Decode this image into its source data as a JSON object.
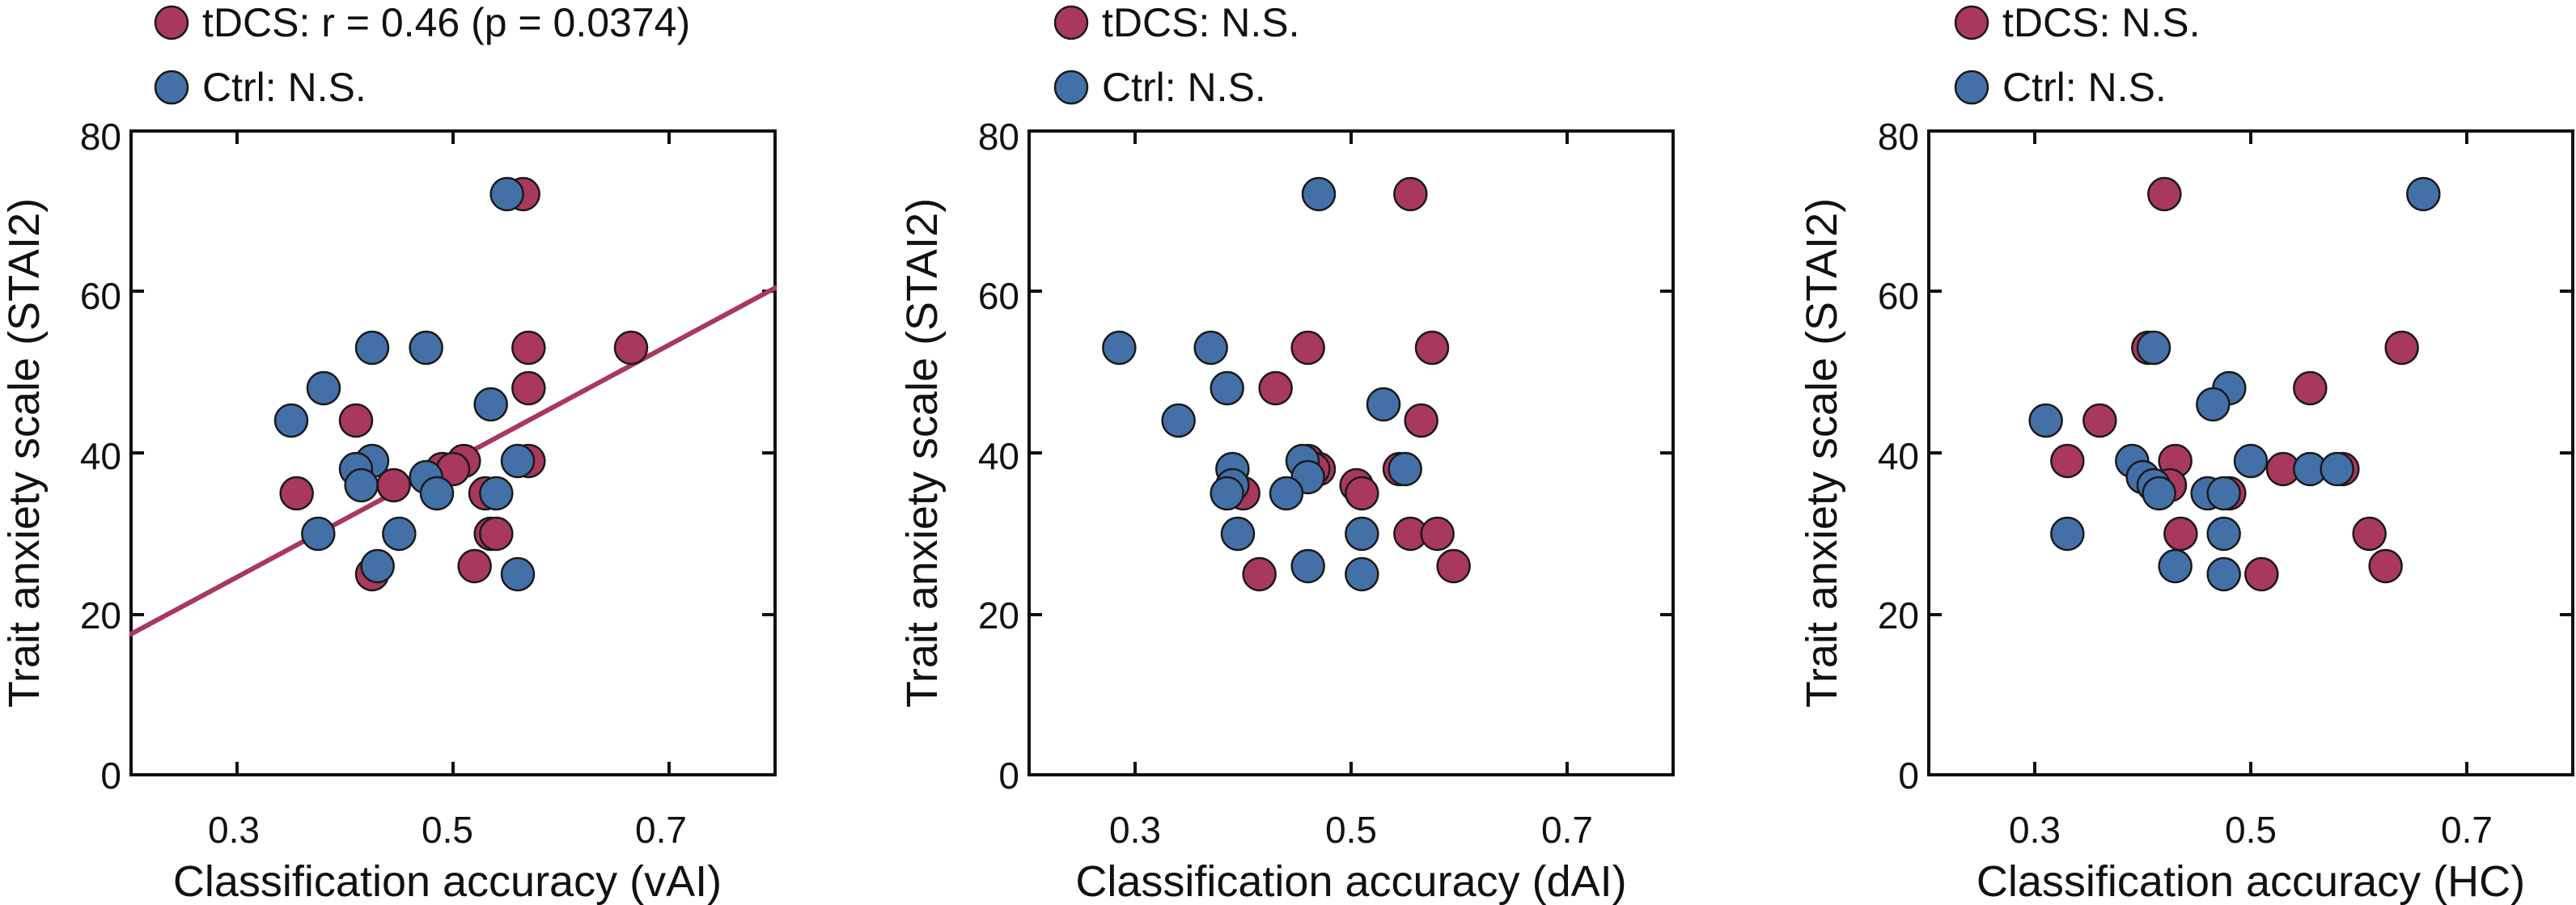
{
  "chart_data": [
    {
      "type": "scatter",
      "xlabel": "Classification accuracy (vAI)",
      "ylabel": "Trait anxiety scale (STAI2)",
      "xlim": [
        0.2,
        0.8
      ],
      "ylim": [
        0,
        80
      ],
      "xticks": [
        "0.3",
        "0.5",
        "0.7"
      ],
      "yticks": [
        "0",
        "20",
        "40",
        "60",
        "80"
      ],
      "legend": [
        "tDCS: r = 0.46 (p = 0.0374)",
        "Ctrl: N.S."
      ],
      "regression_line": {
        "series": "tDCS",
        "x": [
          0.2,
          0.8
        ],
        "y": [
          17.5,
          60.5
        ]
      },
      "series": [
        {
          "name": "tDCS",
          "color": "#a8385e",
          "points": [
            [
              0.565,
              72
            ],
            [
              0.665,
              53
            ],
            [
              0.57,
              53
            ],
            [
              0.57,
              48
            ],
            [
              0.41,
              44
            ],
            [
              0.57,
              39
            ],
            [
              0.51,
              39
            ],
            [
              0.49,
              38
            ],
            [
              0.5,
              38
            ],
            [
              0.445,
              36
            ],
            [
              0.355,
              35
            ],
            [
              0.53,
              35
            ],
            [
              0.535,
              30
            ],
            [
              0.54,
              30
            ],
            [
              0.52,
              26
            ],
            [
              0.425,
              25
            ]
          ]
        },
        {
          "name": "Ctrl",
          "color": "#4470a8",
          "points": [
            [
              0.55,
              72
            ],
            [
              0.425,
              53
            ],
            [
              0.475,
              53
            ],
            [
              0.38,
              48
            ],
            [
              0.535,
              46
            ],
            [
              0.35,
              44
            ],
            [
              0.425,
              39
            ],
            [
              0.56,
              39
            ],
            [
              0.41,
              38
            ],
            [
              0.475,
              37
            ],
            [
              0.415,
              36
            ],
            [
              0.485,
              35
            ],
            [
              0.54,
              35
            ],
            [
              0.375,
              30
            ],
            [
              0.45,
              30
            ],
            [
              0.43,
              26
            ],
            [
              0.56,
              25
            ]
          ]
        }
      ]
    },
    {
      "type": "scatter",
      "xlabel": "Classification accuracy (dAI)",
      "ylabel": "Trait anxiety scale (STAI2)",
      "xlim": [
        0.2,
        0.8
      ],
      "ylim": [
        0,
        80
      ],
      "xticks": [
        "0.3",
        "0.5",
        "0.7"
      ],
      "yticks": [
        "0",
        "20",
        "40",
        "60",
        "80"
      ],
      "legend": [
        "tDCS: N.S.",
        "Ctrl: N.S."
      ],
      "series": [
        {
          "name": "tDCS",
          "color": "#a8385e",
          "points": [
            [
              0.555,
              72
            ],
            [
              0.575,
              53
            ],
            [
              0.46,
              53
            ],
            [
              0.43,
              48
            ],
            [
              0.565,
              44
            ],
            [
              0.46,
              39
            ],
            [
              0.47,
              38
            ],
            [
              0.465,
              38
            ],
            [
              0.545,
              38
            ],
            [
              0.505,
              36
            ],
            [
              0.51,
              35
            ],
            [
              0.4,
              35
            ],
            [
              0.555,
              30
            ],
            [
              0.58,
              30
            ],
            [
              0.595,
              26
            ],
            [
              0.415,
              25
            ]
          ]
        },
        {
          "name": "Ctrl",
          "color": "#4470a8",
          "points": [
            [
              0.47,
              72
            ],
            [
              0.285,
              53
            ],
            [
              0.37,
              53
            ],
            [
              0.385,
              48
            ],
            [
              0.53,
              46
            ],
            [
              0.34,
              44
            ],
            [
              0.455,
              39
            ],
            [
              0.39,
              38
            ],
            [
              0.55,
              38
            ],
            [
              0.46,
              37
            ],
            [
              0.39,
              36
            ],
            [
              0.385,
              35
            ],
            [
              0.44,
              35
            ],
            [
              0.395,
              30
            ],
            [
              0.51,
              30
            ],
            [
              0.46,
              26
            ],
            [
              0.51,
              25
            ]
          ]
        }
      ]
    },
    {
      "type": "scatter",
      "xlabel": "Classification accuracy (HC)",
      "ylabel": "Trait anxiety scale (STAI2)",
      "xlim": [
        0.2,
        0.8
      ],
      "ylim": [
        0,
        80
      ],
      "xticks": [
        "0.3",
        "0.5",
        "0.7"
      ],
      "yticks": [
        "0",
        "20",
        "40",
        "60",
        "80"
      ],
      "legend": [
        "tDCS: N.S.",
        "Ctrl: N.S."
      ],
      "series": [
        {
          "name": "tDCS",
          "color": "#a8385e",
          "points": [
            [
              0.42,
              72
            ],
            [
              0.64,
              53
            ],
            [
              0.405,
              53
            ],
            [
              0.555,
              48
            ],
            [
              0.36,
              44
            ],
            [
              0.43,
              39
            ],
            [
              0.33,
              39
            ],
            [
              0.53,
              38
            ],
            [
              0.585,
              38
            ],
            [
              0.425,
              36
            ],
            [
              0.48,
              35
            ],
            [
              0.435,
              30
            ],
            [
              0.61,
              30
            ],
            [
              0.625,
              26
            ],
            [
              0.51,
              25
            ]
          ]
        },
        {
          "name": "Ctrl",
          "color": "#4470a8",
          "points": [
            [
              0.66,
              72
            ],
            [
              0.41,
              53
            ],
            [
              0.48,
              48
            ],
            [
              0.465,
              46
            ],
            [
              0.31,
              44
            ],
            [
              0.39,
              39
            ],
            [
              0.5,
              39
            ],
            [
              0.555,
              38
            ],
            [
              0.58,
              38
            ],
            [
              0.4,
              37
            ],
            [
              0.41,
              36
            ],
            [
              0.415,
              35
            ],
            [
              0.46,
              35
            ],
            [
              0.475,
              35
            ],
            [
              0.33,
              30
            ],
            [
              0.475,
              30
            ],
            [
              0.43,
              26
            ],
            [
              0.475,
              25
            ]
          ]
        }
      ]
    }
  ]
}
